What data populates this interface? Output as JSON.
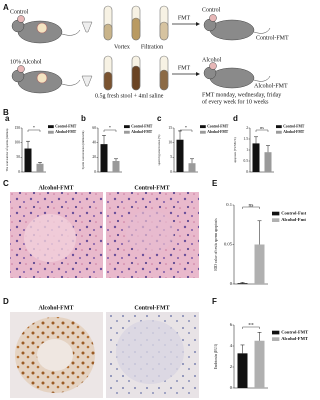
{
  "panel_labels": [
    "A",
    "B",
    "C",
    "D",
    "E",
    "F"
  ],
  "schematic": {
    "control": "Control",
    "alcohol": "10% Alcohol",
    "vortex": "Vortex",
    "filtration": "Filtration",
    "fmt_top": "FMT",
    "fmt_bottom": "FMT",
    "recipient_top": "Control",
    "recipient_bottom": "Alcohol",
    "group_top": "Control-FMT",
    "group_bottom": "Alcohol-FMT",
    "stool": "0.5g fresh stool + 4ml saline",
    "schedule": [
      "FMT monday, wednesday, friday",
      "of every week for 10 weeks"
    ]
  },
  "images": {
    "C": [
      "Alcohol-FMT",
      "Control-FMT"
    ],
    "D": [
      "Alcohol-FMT",
      "Control-FMT"
    ]
  },
  "chart_data": [
    {
      "type": "bar",
      "panel": "a",
      "ylabel": "The total number of sperms (million)",
      "categories": [
        "Control-FMT",
        "Alcohol-FMT"
      ],
      "values": [
        80,
        28
      ],
      "errors": [
        25,
        5
      ],
      "colors": [
        "#111111",
        "#9a9a9a"
      ],
      "significance": "*",
      "ylim": [
        0,
        150
      ],
      "yticks": [
        0,
        50,
        100,
        150
      ]
    },
    {
      "type": "bar",
      "panel": "b",
      "ylabel": "Sperm concentration (million/ml)",
      "categories": [
        "Control-FMT",
        "Alcohol-FMT"
      ],
      "values": [
        38,
        15
      ],
      "errors": [
        12,
        3
      ],
      "colors": [
        "#111111",
        "#9a9a9a"
      ],
      "significance": "*",
      "ylim": [
        0,
        60
      ],
      "yticks": [
        0,
        20,
        40,
        60
      ]
    },
    {
      "type": "bar",
      "panel": "c",
      "ylabel": "sperm hyperactivation (%)",
      "categories": [
        "Control-FMT",
        "Alcohol-FMT"
      ],
      "values": [
        11,
        3
      ],
      "errors": [
        3,
        1.5
      ],
      "colors": [
        "#111111",
        "#9a9a9a"
      ],
      "significance": "*",
      "ylim": [
        0,
        15
      ],
      "yticks": [
        0,
        5,
        10,
        15
      ]
    },
    {
      "type": "bar",
      "panel": "d",
      "ylabel": "apoptosis (TUNEL%)",
      "categories": [
        "Control-FMT",
        "Alcohol-FMT"
      ],
      "values": [
        1.3,
        0.9
      ],
      "errors": [
        0.3,
        0.3
      ],
      "colors": [
        "#111111",
        "#9a9a9a"
      ],
      "significance": "ns",
      "ylim": [
        0,
        2
      ],
      "yticks": [
        0,
        0.5,
        1,
        1.5,
        2
      ]
    },
    {
      "type": "bar",
      "panel": "E",
      "ylabel": "IOD value of testis sperm apoptosis",
      "categories": [
        "Control-Fmt",
        "Alcohol-Fmt"
      ],
      "values": [
        0.001,
        0.05
      ],
      "errors": [
        0.001,
        0.03
      ],
      "colors": [
        "#111111",
        "#b0b0b0"
      ],
      "significance": "ns",
      "ylim": [
        0,
        0.1
      ],
      "yticks": [
        0,
        0.05,
        0.1
      ]
    },
    {
      "type": "bar",
      "panel": "F",
      "ylabel": "Endotoxin (EU/l)",
      "categories": [
        "Control-FMT",
        "Alcohol-FMT"
      ],
      "values": [
        3.3,
        4.5
      ],
      "errors": [
        0.8,
        0.8
      ],
      "colors": [
        "#111111",
        "#b0b0b0"
      ],
      "significance": "**",
      "ylim": [
        0,
        6
      ],
      "yticks": [
        0,
        2,
        4,
        6
      ]
    }
  ]
}
